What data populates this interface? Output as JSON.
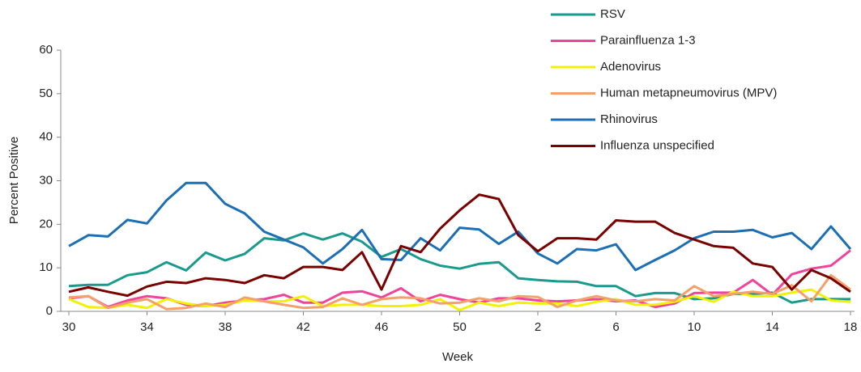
{
  "chart_data": {
    "type": "line",
    "x_label": "Week",
    "y_label": "Percent Positive",
    "categories": [
      "30",
      null,
      null,
      null,
      "34",
      null,
      null,
      null,
      "38",
      null,
      null,
      null,
      "42",
      null,
      null,
      null,
      "46",
      null,
      null,
      null,
      "50",
      null,
      null,
      null,
      "2",
      null,
      null,
      null,
      "6",
      null,
      null,
      null,
      "10",
      null,
      null,
      null,
      "14",
      null,
      null,
      null,
      "18"
    ],
    "ylim": [
      0,
      60
    ],
    "yticks": [
      0,
      10,
      20,
      30,
      40,
      50,
      60
    ],
    "legend": "top-right",
    "series": [
      {
        "name": "RSV",
        "color": "#1a9a8c",
        "values": [
          5.8,
          6.1,
          6.1,
          8.3,
          9,
          11.3,
          9.4,
          13.5,
          11.7,
          13.2,
          16.8,
          16.3,
          17.9,
          16.5,
          17.9,
          16,
          12.5,
          14.3,
          12,
          10.5,
          9.8,
          10.9,
          11.3,
          7.6,
          7.2,
          6.9,
          6.8,
          5.8,
          5.8,
          3.5,
          4.2,
          4.2,
          2.8,
          3,
          4,
          4,
          4.3,
          2,
          2.8,
          2.8,
          2.8
        ]
      },
      {
        "name": "Parainfluenza 1-3",
        "color": "#f0449a",
        "values": [
          3,
          3.5,
          1,
          2.5,
          3.5,
          3,
          1.5,
          1.2,
          2,
          2.5,
          2.8,
          3.8,
          2,
          2,
          4.3,
          4.6,
          3.2,
          5.3,
          2.3,
          3.8,
          2.8,
          2,
          3,
          3,
          2.5,
          2.3,
          2.5,
          2.8,
          2.3,
          2.5,
          1,
          1.8,
          4.2,
          4.3,
          4.3,
          7.2,
          3.8,
          8.5,
          9.8,
          10.5,
          14
        ]
      },
      {
        "name": "Adenovirus",
        "color": "#f2f200",
        "values": [
          2.8,
          1,
          0.8,
          1.5,
          0.8,
          2.8,
          1.8,
          1.2,
          1.5,
          2.5,
          2.3,
          2.3,
          3.5,
          1.2,
          1.5,
          1.5,
          1.2,
          1.2,
          1.5,
          2.8,
          0.3,
          2,
          1.2,
          2,
          1.8,
          1.8,
          1.2,
          2.2,
          2.8,
          1.5,
          1.5,
          2.2,
          3.5,
          2.2,
          4.5,
          3.5,
          3.5,
          4.3,
          5,
          2.5,
          2.2
        ]
      },
      {
        "name": "Human metapneumovirus (MPV)",
        "color": "#f4a06a",
        "values": [
          3.2,
          3.5,
          0.8,
          2,
          2.8,
          0.5,
          0.8,
          1.8,
          1,
          3.2,
          2.3,
          1.5,
          0.8,
          1,
          3,
          1.5,
          2.8,
          3.2,
          3,
          1.8,
          2,
          3,
          2.3,
          3.5,
          3.3,
          1,
          2.5,
          3.5,
          2.5,
          2.3,
          2.8,
          2.5,
          5.8,
          3.5,
          4,
          4.5,
          4,
          6,
          2.3,
          8.3,
          5
        ]
      },
      {
        "name": "Rhinovirus",
        "color": "#1c6fb5",
        "values": [
          15,
          17.5,
          17.2,
          21,
          20.2,
          25.5,
          29.5,
          29.5,
          24.7,
          22.5,
          18.3,
          16.5,
          14.7,
          11,
          14.3,
          18.7,
          12,
          11.8,
          16.8,
          14,
          19.2,
          18.8,
          15.5,
          18.3,
          13.3,
          11,
          14.3,
          14,
          15.4,
          9.5,
          11.8,
          14,
          16.8,
          18.3,
          18.3,
          18.7,
          17,
          18,
          14.3,
          19.5,
          14.3
        ]
      },
      {
        "name": "Influenza unspecified",
        "color": "#7a0000",
        "values": [
          4.5,
          5.5,
          4.5,
          3.6,
          5.7,
          6.8,
          6.5,
          7.6,
          7.2,
          6.5,
          8.3,
          7.6,
          10.2,
          10.2,
          9.5,
          13.6,
          5,
          15,
          13.6,
          19,
          23.2,
          26.8,
          25.8,
          17.5,
          13.8,
          16.8,
          16.8,
          16.5,
          20.9,
          20.6,
          20.6,
          18,
          16.5,
          15,
          14.6,
          11,
          10.2,
          5,
          9.5,
          7.6,
          4.5
        ]
      }
    ]
  }
}
